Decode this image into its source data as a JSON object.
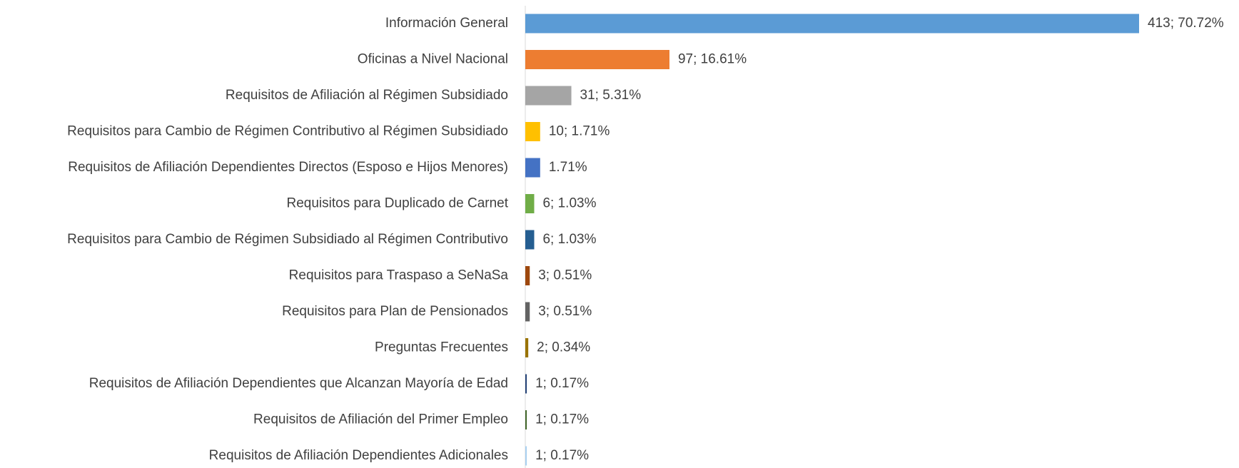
{
  "chart_data": {
    "type": "bar",
    "orientation": "horizontal",
    "categories": [
      "Información General",
      "Oficinas a Nivel Nacional",
      "Requisitos de Afiliación al Régimen Subsidiado",
      "Requisitos para Cambio de Régimen Contributivo al Régimen Subsidiado",
      "Requisitos de Afiliación Dependientes Directos (Esposo e Hijos Menores)",
      "Requisitos para Duplicado de Carnet",
      "Requisitos para Cambio de Régimen Subsidiado al Régimen Contributivo",
      "Requisitos para Traspaso a SeNaSa",
      "Requisitos para Plan de Pensionados",
      "Preguntas Frecuentes",
      "Requisitos de Afiliación Dependientes que Alcanzan Mayoría de Edad",
      "Requisitos de Afiliación del Primer Empleo",
      "Requisitos de Afiliación Dependientes Adicionales"
    ],
    "values": [
      413,
      97,
      31,
      10,
      10,
      6,
      6,
      3,
      3,
      2,
      1,
      1,
      1
    ],
    "value_labels": [
      "413; 70.72%",
      "97; 16.61%",
      "31; 5.31%",
      "10; 1.71%",
      "1.71%",
      "6; 1.03%",
      "6; 1.03%",
      "3; 0.51%",
      "3; 0.51%",
      "2; 0.34%",
      "1; 0.17%",
      "1; 0.17%",
      "1; 0.17%"
    ],
    "colors": [
      "#5b9bd5",
      "#ed7d31",
      "#a5a5a5",
      "#ffc000",
      "#4472c4",
      "#70ad47",
      "#255e91",
      "#9e480e",
      "#636363",
      "#997300",
      "#264478",
      "#43682b",
      "#a9d0f0"
    ]
  }
}
